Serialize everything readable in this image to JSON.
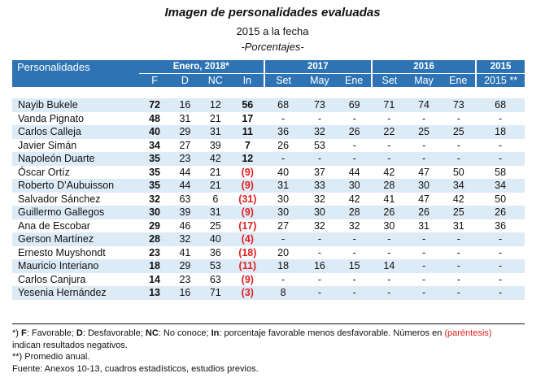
{
  "title": "Imagen de personalidades evaluadas",
  "subtitle": "2015 a la fecha",
  "units": "-Porcentajes-",
  "header": {
    "personalidades": "Personalidades",
    "group_enero": "Enero, 2018*",
    "group_2017": "2017",
    "group_2016": "2016",
    "group_2015": "2015",
    "cols": [
      "F",
      "D",
      "NC",
      "In",
      "Set",
      "May",
      "Ene",
      "Set",
      "May",
      "Ene",
      "2015 **"
    ]
  },
  "rows": [
    {
      "name": "Nayib Bukele",
      "F": "72",
      "D": "16",
      "NC": "12",
      "In": "56",
      "s17": "68",
      "m17": "73",
      "e17": "69",
      "s16": "71",
      "m16": "74",
      "e16": "73",
      "y15": "68"
    },
    {
      "name": "Vanda Pignato",
      "F": "48",
      "D": "31",
      "NC": "21",
      "In": "17",
      "s17": "-",
      "m17": "-",
      "e17": "-",
      "s16": "-",
      "m16": "-",
      "e16": "-",
      "y15": "-"
    },
    {
      "name": "Carlos Calleja",
      "F": "40",
      "D": "29",
      "NC": "31",
      "In": "11",
      "s17": "36",
      "m17": "32",
      "e17": "26",
      "s16": "22",
      "m16": "25",
      "e16": "25",
      "y15": "18"
    },
    {
      "name": "Javier Simán",
      "F": "34",
      "D": "27",
      "NC": "39",
      "In": "7",
      "s17": "26",
      "m17": "53",
      "e17": "-",
      "s16": "-",
      "m16": "-",
      "e16": "-",
      "y15": "-"
    },
    {
      "name": "Napoleón Duarte",
      "F": "35",
      "D": "23",
      "NC": "42",
      "In": "12",
      "s17": "-",
      "m17": "-",
      "e17": "-",
      "s16": "-",
      "m16": "-",
      "e16": "-",
      "y15": "-"
    },
    {
      "name": "Óscar Ortíz",
      "F": "35",
      "D": "44",
      "NC": "21",
      "In": "(9)",
      "s17": "40",
      "m17": "37",
      "e17": "44",
      "s16": "42",
      "m16": "47",
      "e16": "50",
      "y15": "58"
    },
    {
      "name": "Roberto D’Aubuisson",
      "F": "35",
      "D": "44",
      "NC": "21",
      "In": "(9)",
      "s17": "31",
      "m17": "33",
      "e17": "30",
      "s16": "28",
      "m16": "30",
      "e16": "34",
      "y15": "34"
    },
    {
      "name": "Salvador Sánchez",
      "F": "32",
      "D": "63",
      "NC": "6",
      "In": "(31)",
      "s17": "30",
      "m17": "32",
      "e17": "42",
      "s16": "41",
      "m16": "47",
      "e16": "42",
      "y15": "50"
    },
    {
      "name": "Guillermo Gallegos",
      "F": "30",
      "D": "39",
      "NC": "31",
      "In": "(9)",
      "s17": "30",
      "m17": "30",
      "e17": "28",
      "s16": "26",
      "m16": "26",
      "e16": "25",
      "y15": "26"
    },
    {
      "name": "Ana de Escobar",
      "F": "29",
      "D": "46",
      "NC": "25",
      "In": "(17)",
      "s17": "27",
      "m17": "32",
      "e17": "32",
      "s16": "30",
      "m16": "31",
      "e16": "31",
      "y15": "36"
    },
    {
      "name": "Gerson Martínez",
      "F": "28",
      "D": "32",
      "NC": "40",
      "In": "(4)",
      "s17": "-",
      "m17": "-",
      "e17": "-",
      "s16": "-",
      "m16": "-",
      "e16": "-",
      "y15": "-"
    },
    {
      "name": "Ernesto Muyshondt",
      "F": "23",
      "D": "41",
      "NC": "36",
      "In": "(18)",
      "s17": "20",
      "m17": "-",
      "e17": "-",
      "s16": "-",
      "m16": "-",
      "e16": "-",
      "y15": "-"
    },
    {
      "name": "Mauricio Interiano",
      "F": "18",
      "D": "29",
      "NC": "53",
      "In": "(11)",
      "s17": "18",
      "m17": "16",
      "e17": "15",
      "s16": "14",
      "m16": "-",
      "e16": "-",
      "y15": "-"
    },
    {
      "name": "Carlos Canjura",
      "F": "14",
      "D": "23",
      "NC": "63",
      "In": "(9)",
      "s17": "-",
      "m17": "-",
      "e17": "-",
      "s16": "-",
      "m16": "-",
      "e16": "-",
      "y15": "-"
    },
    {
      "name": "Yesenia Hernández",
      "F": "13",
      "D": "16",
      "NC": "71",
      "In": "(3)",
      "s17": "8",
      "m17": "-",
      "e17": "-",
      "s16": "-",
      "m16": "-",
      "e16": "-",
      "y15": "-"
    }
  ],
  "footer": {
    "note1_pre": "*) ",
    "f_key": "F",
    "f_text": ": Favorable; ",
    "d_key": "D",
    "d_text": ": Desfavorable; ",
    "nc_key": "NC",
    "nc_text": ": No conoce; ",
    "in_key": "In",
    "in_text": ": porcentaje favorable menos desfavorable. Números en ",
    "paren": "(paréntesis)",
    "line2": "indican resultados negativos.",
    "note2": "**) Promedio anual.",
    "source": "Fuente:  Anexos 10-13, cuadros estadísticos, estudios previos."
  },
  "colors": {
    "header_bg": "#2e74b5",
    "row_shade": "#ddebf7",
    "negative": "#e02020"
  }
}
